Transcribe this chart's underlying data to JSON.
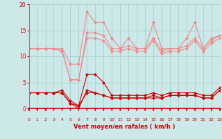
{
  "xlabel": "Vent moyen/en rafales ( km/h )",
  "bg_color": "#cce8e8",
  "grid_color": "#aad4d4",
  "x": [
    0,
    1,
    2,
    3,
    4,
    5,
    6,
    7,
    8,
    9,
    10,
    11,
    12,
    13,
    14,
    15,
    16,
    17,
    18,
    19,
    20,
    21,
    22,
    23
  ],
  "line1": [
    11.5,
    11.5,
    11.5,
    11.5,
    11.5,
    8.5,
    8.5,
    18.5,
    16.5,
    16.5,
    13.5,
    11.5,
    13.5,
    11.5,
    11.5,
    16.5,
    11.5,
    11.5,
    11.5,
    13.5,
    16.5,
    11.5,
    13.5,
    14.0
  ],
  "line2": [
    11.5,
    11.5,
    11.5,
    11.5,
    11.0,
    5.5,
    5.5,
    14.5,
    14.5,
    14.0,
    11.5,
    11.5,
    12.0,
    11.5,
    11.5,
    13.5,
    11.0,
    11.5,
    11.5,
    12.0,
    13.5,
    11.5,
    13.0,
    14.0
  ],
  "line3": [
    11.5,
    11.5,
    11.5,
    11.5,
    11.0,
    5.5,
    5.5,
    13.5,
    13.5,
    13.0,
    11.0,
    11.0,
    11.5,
    11.0,
    11.0,
    13.0,
    10.5,
    11.0,
    11.0,
    11.5,
    13.0,
    11.0,
    12.5,
    13.5
  ],
  "line4": [
    3.0,
    3.0,
    3.0,
    3.0,
    3.5,
    1.5,
    0.5,
    6.5,
    6.5,
    5.0,
    2.5,
    2.5,
    2.5,
    2.5,
    2.5,
    3.0,
    2.5,
    3.0,
    3.0,
    3.0,
    3.0,
    2.5,
    2.5,
    4.0
  ],
  "line5": [
    3.0,
    3.0,
    3.0,
    3.0,
    3.0,
    1.0,
    0.0,
    3.5,
    3.0,
    2.5,
    2.0,
    2.0,
    2.0,
    2.0,
    2.0,
    2.5,
    2.0,
    2.5,
    2.5,
    2.5,
    2.5,
    2.0,
    2.0,
    3.5
  ],
  "line6": [
    3.0,
    3.0,
    3.0,
    3.0,
    3.0,
    1.0,
    0.5,
    3.0,
    3.0,
    2.5,
    2.0,
    2.0,
    2.0,
    2.0,
    2.0,
    2.0,
    2.0,
    2.5,
    2.5,
    2.5,
    2.5,
    2.0,
    2.0,
    3.5
  ],
  "ylim": [
    0,
    20
  ],
  "xlim": [
    0,
    23
  ],
  "yticks": [
    0,
    5,
    10,
    15,
    20
  ],
  "xticks": [
    0,
    1,
    2,
    3,
    4,
    5,
    6,
    7,
    8,
    9,
    10,
    11,
    12,
    13,
    14,
    15,
    16,
    17,
    18,
    19,
    20,
    21,
    22,
    23
  ],
  "color_light": "#f08888",
  "color_dark": "#cc0000",
  "markersize": 2.5,
  "linewidth": 0.8
}
